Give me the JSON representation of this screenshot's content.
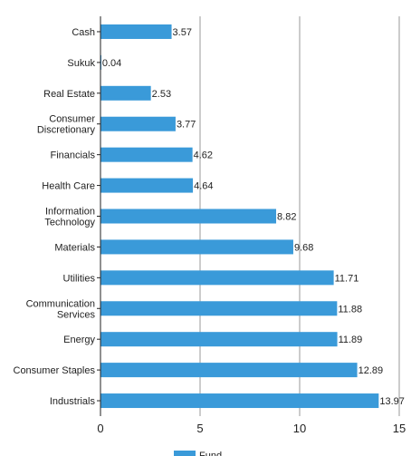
{
  "chart_data": {
    "type": "bar",
    "orientation": "horizontal",
    "categories": [
      "Cash",
      "Sukuk",
      "Real Estate",
      "Consumer Discretionary",
      "Financials",
      "Health Care",
      "Information Technology",
      "Materials",
      "Utilities",
      "Communication Services",
      "Energy",
      "Consumer Staples",
      "Industrials"
    ],
    "category_lines": [
      [
        "Cash"
      ],
      [
        "Sukuk"
      ],
      [
        "Real Estate"
      ],
      [
        "Consumer",
        "Discretionary"
      ],
      [
        "Financials"
      ],
      [
        "Health Care"
      ],
      [
        "Information",
        "Technology"
      ],
      [
        "Materials"
      ],
      [
        "Utilities"
      ],
      [
        "Communication",
        "Services"
      ],
      [
        "Energy"
      ],
      [
        "Consumer Staples"
      ],
      [
        "Industrials"
      ]
    ],
    "series": [
      {
        "name": "Fund",
        "color": "#3a9ad9",
        "values": [
          3.57,
          0.04,
          2.53,
          3.77,
          4.62,
          4.64,
          8.82,
          9.68,
          11.71,
          11.88,
          11.89,
          12.89,
          13.97
        ],
        "value_labels": [
          "3.57",
          "0.04",
          "2.53",
          "3.77",
          "4.62",
          "4.64",
          "8.82",
          "9.68",
          "11.71",
          "11.88",
          "11.89",
          "12.89",
          "13.97"
        ]
      }
    ],
    "xlim": [
      0,
      15
    ],
    "xticks": [
      "0",
      "5",
      "10",
      "15"
    ],
    "grid": true,
    "legend": "bottom",
    "title": "",
    "xlabel": "",
    "ylabel": ""
  }
}
